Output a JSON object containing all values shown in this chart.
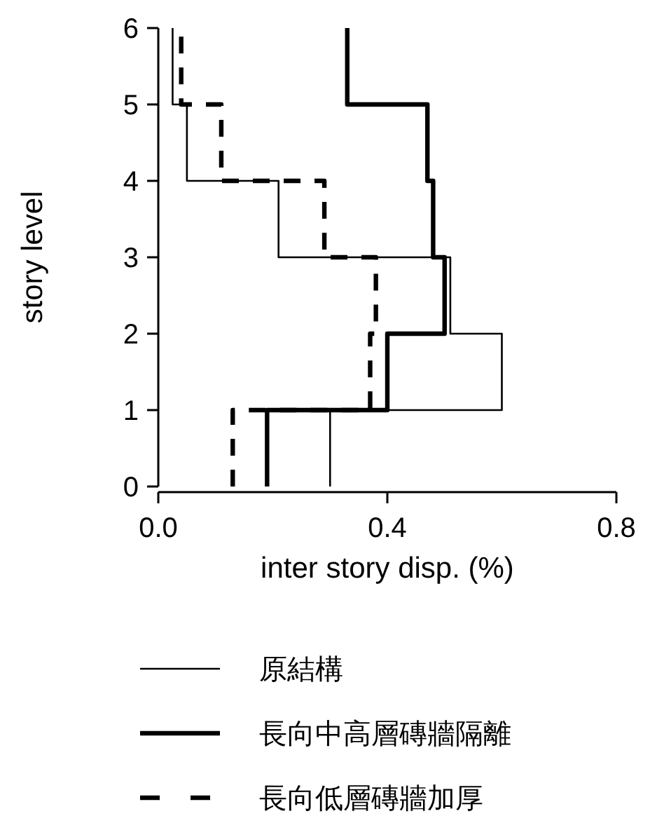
{
  "chart_data": {
    "type": "line",
    "xlabel": "inter story disp. (%)",
    "ylabel": "story level",
    "xlim": [
      0,
      0.8
    ],
    "ylim": [
      0,
      6
    ],
    "xticks": [
      {
        "value": 0,
        "label": "0.0"
      },
      0.4,
      0.8
    ],
    "yticks": [
      0,
      1,
      2,
      3,
      4,
      5,
      6
    ],
    "grid": false,
    "legend": "bottom",
    "marker": "none",
    "series": [
      {
        "name": "原結構",
        "color": "#000000",
        "line_style": "solid",
        "x": [
          0.3,
          0.3,
          0.6,
          0.6,
          0.51,
          0.51,
          0.21,
          0.21,
          0.05,
          0.05,
          0.025,
          0.025
        ],
        "values": [
          0,
          1,
          1,
          2,
          2,
          3,
          3,
          4,
          4,
          5,
          5,
          6
        ]
      },
      {
        "name": "長向中高層磚牆隔離",
        "color": "#000000",
        "line_style": "solid",
        "x": [
          0.19,
          0.19,
          0.4,
          0.4,
          0.5,
          0.5,
          0.48,
          0.48,
          0.47,
          0.47,
          0.33,
          0.33
        ],
        "values": [
          0,
          1,
          1,
          2,
          2,
          3,
          3,
          4,
          4,
          5,
          5,
          6
        ]
      },
      {
        "name": "長向低層磚牆加厚",
        "color": "#000000",
        "line_style": "dashed",
        "x": [
          0.13,
          0.13,
          0.37,
          0.37,
          0.38,
          0.38,
          0.29,
          0.29,
          0.11,
          0.11,
          0.04,
          0.04
        ],
        "values": [
          0,
          1,
          1,
          2,
          2,
          3,
          3,
          4,
          4,
          5,
          5,
          6
        ]
      }
    ]
  }
}
